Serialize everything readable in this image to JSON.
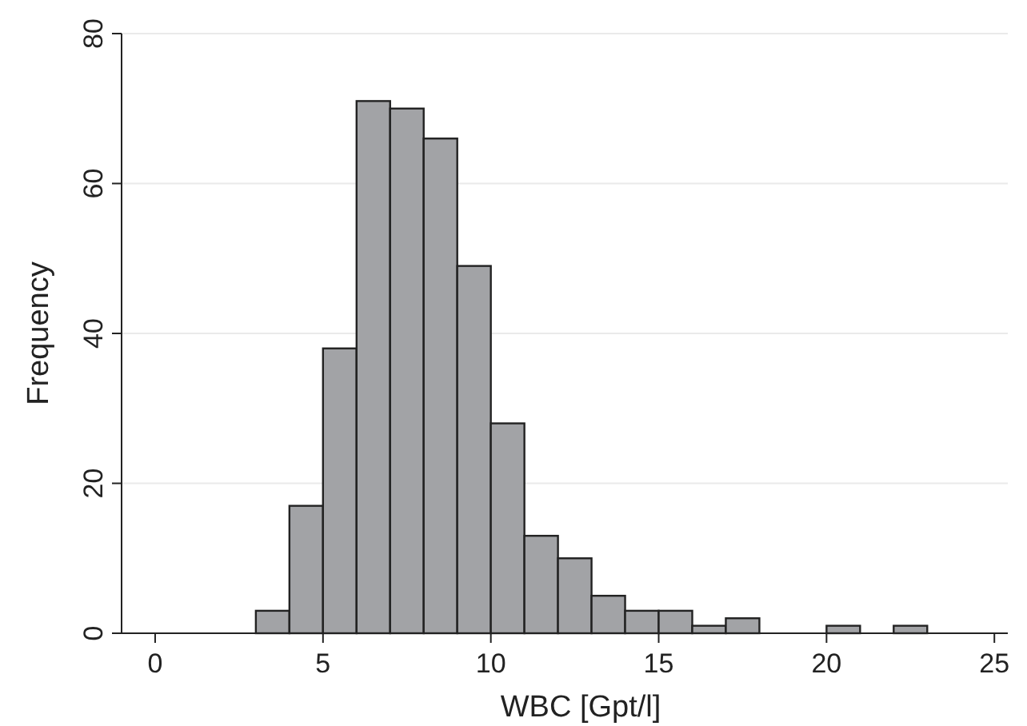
{
  "chart_data": {
    "type": "histogram",
    "xlabel": "WBC [Gpt/l]",
    "ylabel": "Frequency",
    "bins": [
      3,
      4,
      5,
      6,
      7,
      8,
      9,
      10,
      11,
      12,
      13,
      14,
      15,
      16,
      17,
      18,
      19,
      20,
      21,
      22,
      23
    ],
    "values": [
      3,
      17,
      38,
      71,
      70,
      66,
      49,
      28,
      13,
      10,
      5,
      3,
      3,
      1,
      2,
      0,
      0,
      1,
      0,
      1
    ],
    "color": "#a2a3a6",
    "xlim": [
      -1,
      25.4
    ],
    "xticks": [
      0,
      5,
      10,
      15,
      20,
      25
    ],
    "ylim": [
      0,
      80
    ],
    "yticks": [
      0,
      20,
      40,
      60,
      80
    ],
    "grid": "y"
  }
}
